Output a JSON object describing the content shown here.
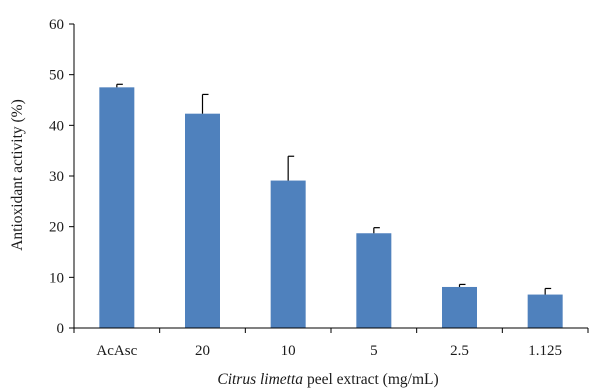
{
  "chart_data": {
    "type": "bar",
    "categories": [
      "AcAsc",
      "20",
      "10",
      "5",
      "2.5",
      "1.125"
    ],
    "values": [
      47.5,
      42.3,
      29.1,
      18.7,
      8.1,
      6.6
    ],
    "errors": [
      0.6,
      3.8,
      4.8,
      1.1,
      0.5,
      1.2
    ],
    "ylabel": "Antioxidant activity (%)",
    "xlabel_italic": "Citrus limetta",
    "xlabel_rest": " peel extract (mg/mL)",
    "ylim": [
      0,
      60
    ],
    "yticks": [
      0,
      10,
      20,
      30,
      40,
      50,
      60
    ],
    "grid": false,
    "bar_color": "#4f81bd"
  }
}
